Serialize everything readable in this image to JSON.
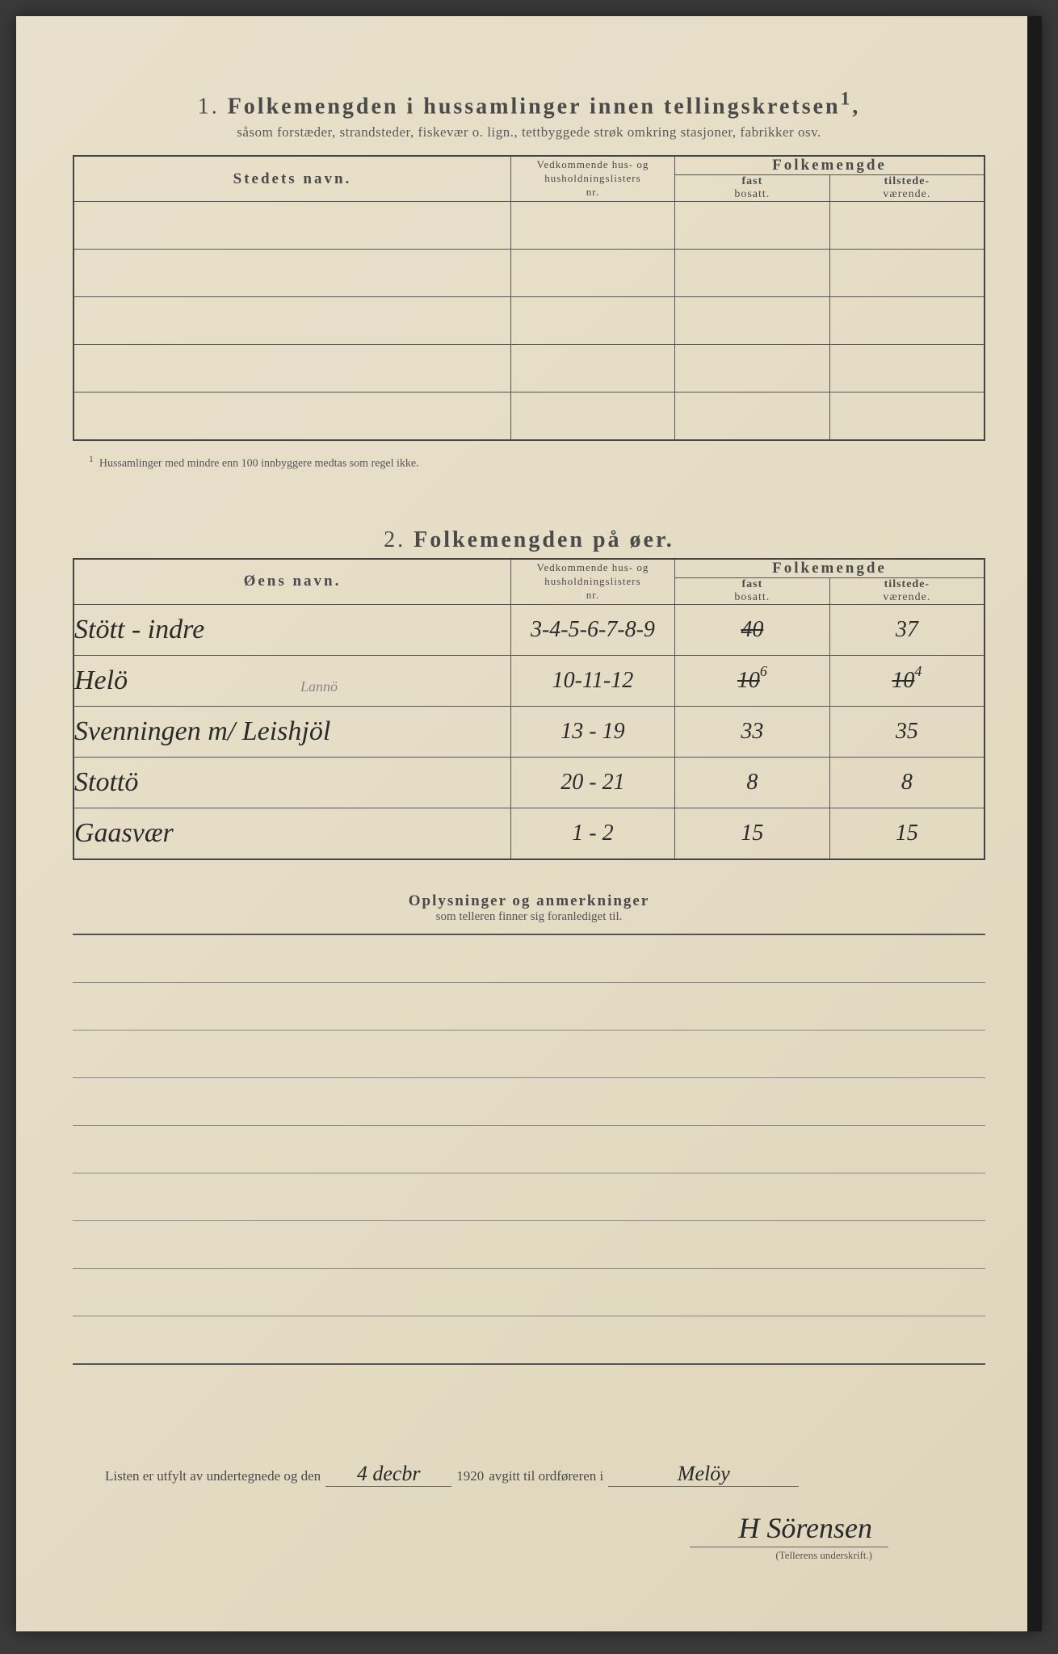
{
  "section1": {
    "number": "1.",
    "title": "Folkemengden i hussamlinger innen tellingskretsen",
    "title_sup": "1",
    "subtitle": "såsom forstæder, strandsteder, fiskevær o. lign., tettbyggede strøk omkring stasjoner, fabrikker osv.",
    "col_name": "Stedets navn.",
    "col_ref_line1": "Vedkommende hus- og",
    "col_ref_line2": "husholdningslisters",
    "col_ref_line3": "nr.",
    "col_folk": "Folkemengde",
    "col_fast_line1": "fast",
    "col_fast_line2": "bosatt.",
    "col_til_line1": "tilstede-",
    "col_til_line2": "værende.",
    "footnote_marker": "1",
    "footnote": "Hussamlinger med mindre enn 100 innbyggere medtas som regel ikke.",
    "empty_rows": 5
  },
  "section2": {
    "number": "2.",
    "title": "Folkemengden på øer.",
    "col_name": "Øens navn.",
    "rows": [
      {
        "name": "Stött - indre",
        "ref": "3-4-5-6-7-8-9",
        "fast": "40",
        "fast_struck": true,
        "til": "37"
      },
      {
        "name": "Helö",
        "name_note": "Lannö",
        "ref": "10-11-12",
        "fast": "10",
        "fast_struck": true,
        "fast_sup": "6",
        "til": "10",
        "til_struck": true,
        "til_sup": "4"
      },
      {
        "name": "Svenningen m/ Leishjöl",
        "ref": "13 - 19",
        "fast": "33",
        "til": "35"
      },
      {
        "name": "Stottö",
        "ref": "20 - 21",
        "fast": "8",
        "til": "8"
      },
      {
        "name": "Gaasvær",
        "ref": "1 - 2",
        "fast": "15",
        "til": "15"
      }
    ]
  },
  "remarks": {
    "title": "Oplysninger og anmerkninger",
    "subtitle": "som telleren finner sig foranlediget til.",
    "ruled_lines": 9
  },
  "footer": {
    "text_before_date": "Listen er utfylt av undertegnede og den",
    "date": "4 decbr",
    "year": "1920",
    "text_after_year": "avgitt til ordføreren i",
    "place": "Melöy",
    "signature": "H Sörensen",
    "sig_label": "(Tellerens underskrift.)"
  },
  "colors": {
    "paper": "#e5dcc5",
    "ink_print": "#4a4a4a",
    "ink_hand": "#2a2a2a",
    "border": "#555"
  }
}
